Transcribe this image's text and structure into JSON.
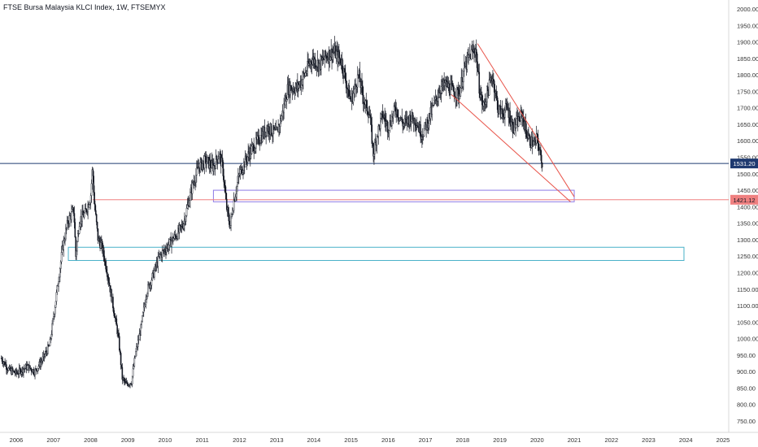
{
  "chart_data": {
    "type": "candlestick",
    "title": "FTSE Bursa Malaysia KLCI Index, 1W, FTSEMYX",
    "y_ticks": [
      "2000.00",
      "1950.00",
      "1900.00",
      "1850.00",
      "1800.00",
      "1750.00",
      "1700.00",
      "1650.00",
      "1600.00",
      "1550.00",
      "1500.00",
      "1450.00",
      "1400.00",
      "1350.00",
      "1300.00",
      "1250.00",
      "1200.00",
      "1150.00",
      "1100.00",
      "1050.00",
      "1000.00",
      "950.00",
      "900.00",
      "850.00",
      "800.00",
      "750.00"
    ],
    "x_ticks": [
      "2006",
      "2007",
      "2008",
      "2009",
      "2010",
      "2011",
      "2012",
      "2013",
      "2014",
      "2015",
      "2016",
      "2017",
      "2018",
      "2019",
      "2020",
      "2021",
      "2022",
      "2023",
      "2024",
      "2025"
    ],
    "ylim": [
      725,
      2010
    ],
    "xlim": [
      2005.6,
      2025.3
    ],
    "price_points": [
      [
        2005.6,
        940
      ],
      [
        2005.8,
        905
      ],
      [
        2006.0,
        895
      ],
      [
        2006.3,
        915
      ],
      [
        2006.5,
        900
      ],
      [
        2006.7,
        935
      ],
      [
        2006.9,
        980
      ],
      [
        2007.1,
        1150
      ],
      [
        2007.25,
        1280
      ],
      [
        2007.4,
        1360
      ],
      [
        2007.55,
        1390
      ],
      [
        2007.6,
        1250
      ],
      [
        2007.7,
        1360
      ],
      [
        2007.85,
        1380
      ],
      [
        2008.0,
        1430
      ],
      [
        2008.05,
        1520
      ],
      [
        2008.1,
        1410
      ],
      [
        2008.2,
        1300
      ],
      [
        2008.3,
        1280
      ],
      [
        2008.45,
        1200
      ],
      [
        2008.6,
        1100
      ],
      [
        2008.75,
        1000
      ],
      [
        2008.85,
        880
      ],
      [
        2008.95,
        860
      ],
      [
        2009.1,
        870
      ],
      [
        2009.2,
        950
      ],
      [
        2009.35,
        1030
      ],
      [
        2009.5,
        1140
      ],
      [
        2009.7,
        1200
      ],
      [
        2009.85,
        1250
      ],
      [
        2010.0,
        1270
      ],
      [
        2010.2,
        1300
      ],
      [
        2010.35,
        1320
      ],
      [
        2010.5,
        1350
      ],
      [
        2010.6,
        1400
      ],
      [
        2010.75,
        1470
      ],
      [
        2010.9,
        1520
      ],
      [
        2011.1,
        1540
      ],
      [
        2011.3,
        1520
      ],
      [
        2011.45,
        1560
      ],
      [
        2011.55,
        1520
      ],
      [
        2011.65,
        1400
      ],
      [
        2011.75,
        1340
      ],
      [
        2011.85,
        1420
      ],
      [
        2012.0,
        1500
      ],
      [
        2012.25,
        1560
      ],
      [
        2012.5,
        1600
      ],
      [
        2012.75,
        1640
      ],
      [
        2013.0,
        1620
      ],
      [
        2013.15,
        1680
      ],
      [
        2013.3,
        1760
      ],
      [
        2013.55,
        1760
      ],
      [
        2013.75,
        1800
      ],
      [
        2013.95,
        1850
      ],
      [
        2014.15,
        1830
      ],
      [
        2014.35,
        1860
      ],
      [
        2014.55,
        1870
      ],
      [
        2014.75,
        1840
      ],
      [
        2014.9,
        1760
      ],
      [
        2015.0,
        1720
      ],
      [
        2015.2,
        1800
      ],
      [
        2015.35,
        1720
      ],
      [
        2015.5,
        1680
      ],
      [
        2015.6,
        1560
      ],
      [
        2015.7,
        1620
      ],
      [
        2015.85,
        1680
      ],
      [
        2016.0,
        1640
      ],
      [
        2016.2,
        1700
      ],
      [
        2016.4,
        1650
      ],
      [
        2016.6,
        1670
      ],
      [
        2016.75,
        1660
      ],
      [
        2016.9,
        1620
      ],
      [
        2017.0,
        1640
      ],
      [
        2017.2,
        1700
      ],
      [
        2017.4,
        1760
      ],
      [
        2017.55,
        1770
      ],
      [
        2017.75,
        1750
      ],
      [
        2017.9,
        1740
      ],
      [
        2018.05,
        1820
      ],
      [
        2018.2,
        1860
      ],
      [
        2018.35,
        1880
      ],
      [
        2018.45,
        1760
      ],
      [
        2018.55,
        1700
      ],
      [
        2018.7,
        1760
      ],
      [
        2018.8,
        1800
      ],
      [
        2018.95,
        1700
      ],
      [
        2019.05,
        1680
      ],
      [
        2019.2,
        1700
      ],
      [
        2019.35,
        1640
      ],
      [
        2019.5,
        1660
      ],
      [
        2019.6,
        1680
      ],
      [
        2019.7,
        1630
      ],
      [
        2019.8,
        1600
      ],
      [
        2019.95,
        1590
      ],
      [
        2020.0,
        1610
      ],
      [
        2020.08,
        1560
      ],
      [
        2020.15,
        1531
      ]
    ],
    "horizontal_levels": [
      {
        "value": 1531.2,
        "label": "1531.20",
        "color": "#1e3a70"
      },
      {
        "value": 1421.12,
        "label": "1421.12",
        "color": "#ef8080"
      }
    ],
    "zones": [
      {
        "x_from": 2011.3,
        "x_to": 2021.0,
        "y_low": 1415,
        "y_high": 1450,
        "color": "#8c7ae6"
      },
      {
        "x_from": 2007.4,
        "x_to": 2023.95,
        "y_low": 1237,
        "y_high": 1277,
        "color": "#48b0c8"
      }
    ],
    "trend_lines": [
      {
        "from": [
          2018.4,
          1895
        ],
        "to": [
          2021.0,
          1430
        ],
        "color": "#e8544a"
      },
      {
        "from": [
          2017.7,
          1740
        ],
        "to": [
          2020.9,
          1415
        ],
        "color": "#e8544a"
      }
    ],
    "colors": {
      "up": "#131722",
      "down": "#131722",
      "grid": "#e6e6e6"
    }
  }
}
